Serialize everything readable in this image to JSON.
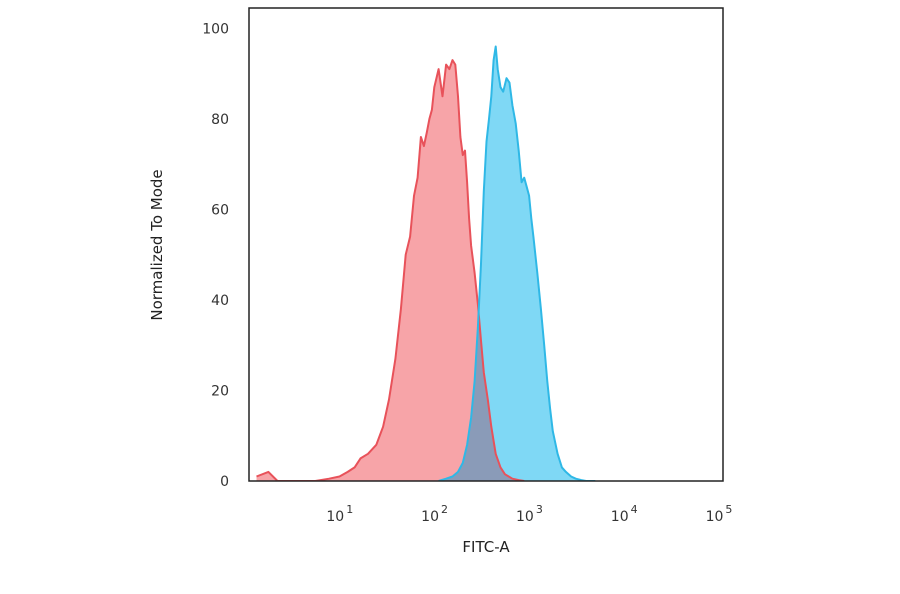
{
  "chart_data": {
    "type": "area",
    "title": "",
    "xlabel": "FITC-A",
    "ylabel": "Normalized To Mode",
    "x_scale": "log",
    "xlim": [
      1,
      100000
    ],
    "ylim": [
      0,
      100
    ],
    "grid": false,
    "legend": "none",
    "x_ticks": [
      {
        "value": 10,
        "base": "10",
        "exp": "1"
      },
      {
        "value": 100,
        "base": "10",
        "exp": "2"
      },
      {
        "value": 1000,
        "base": "10",
        "exp": "3"
      },
      {
        "value": 10000,
        "base": "10",
        "exp": "4"
      },
      {
        "value": 100000,
        "base": "10",
        "exp": "5"
      }
    ],
    "y_ticks": [
      0,
      20,
      40,
      60,
      80,
      100
    ],
    "series": [
      {
        "color": "#e8525a",
        "fill": "#f7a4a8",
        "x": [
          1.2,
          1.6,
          2,
          5,
          7,
          9,
          11,
          13,
          15,
          18,
          22,
          26,
          30,
          35,
          40,
          45,
          50,
          55,
          60,
          65,
          70,
          75,
          80,
          85,
          90,
          100,
          110,
          120,
          130,
          140,
          150,
          160,
          170,
          180,
          190,
          200,
          210,
          220,
          240,
          260,
          280,
          300,
          330,
          360,
          400,
          450,
          500,
          600,
          700,
          800
        ],
        "y": [
          1,
          2,
          0,
          0,
          0.5,
          1,
          2,
          3,
          5,
          6,
          8,
          12,
          18,
          27,
          38,
          50,
          54,
          63,
          67,
          76,
          74,
          77,
          80,
          82,
          87,
          91,
          85,
          92,
          91,
          93,
          92,
          85,
          76,
          72,
          73,
          66,
          58,
          52,
          46,
          39,
          31,
          24,
          18,
          12,
          6,
          3,
          1.5,
          0.5,
          0.2,
          0
        ]
      },
      {
        "color": "#2fb8e6",
        "fill": "#7fd8f5",
        "x": [
          100,
          120,
          140,
          160,
          180,
          200,
          220,
          240,
          260,
          280,
          300,
          320,
          340,
          360,
          380,
          400,
          420,
          450,
          480,
          520,
          560,
          600,
          650,
          700,
          750,
          800,
          850,
          900,
          950,
          1000,
          1100,
          1200,
          1300,
          1400,
          1500,
          1600,
          1800,
          2000,
          2200,
          2500,
          2800,
          3200,
          3600,
          4000,
          4500
        ],
        "y": [
          0,
          0.5,
          1,
          2,
          4,
          8,
          14,
          22,
          34,
          48,
          64,
          75,
          80,
          85,
          93,
          96,
          91,
          87,
          86,
          89,
          88,
          83,
          79,
          73,
          66,
          67,
          65,
          63,
          58,
          54,
          46,
          38,
          30,
          22,
          16,
          11,
          6,
          3,
          2,
          1,
          0.5,
          0.2,
          0,
          0,
          0
        ]
      }
    ],
    "overlap_color": "#8a9bb8"
  }
}
